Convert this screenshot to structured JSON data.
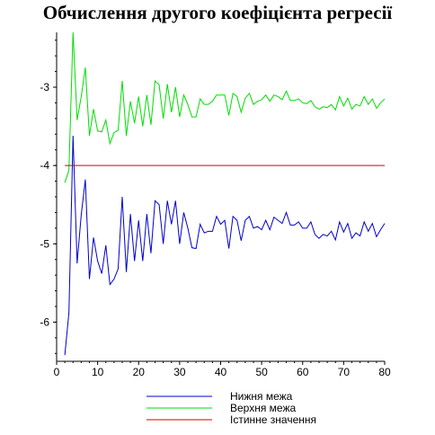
{
  "chart_data": {
    "type": "line",
    "title": "Обчислення другого коефіцієнта регресії",
    "xlabel": "",
    "ylabel": "",
    "xlim": [
      0,
      80
    ],
    "ylim": [
      -6.5,
      -2.3
    ],
    "x_ticks": [
      0,
      10,
      20,
      30,
      40,
      50,
      60,
      70,
      80
    ],
    "y_ticks": [
      -6,
      -5,
      -4,
      -3
    ],
    "grid": false,
    "legend_position": "bottom",
    "series": [
      {
        "name": "Нижня межа",
        "color": "#0000cc",
        "x": [
          2,
          3,
          4,
          5,
          6,
          7,
          8,
          9,
          10,
          11,
          12,
          13,
          14,
          15,
          16,
          17,
          18,
          19,
          20,
          21,
          22,
          23,
          24,
          25,
          26,
          27,
          28,
          29,
          30,
          31,
          32,
          33,
          34,
          35,
          36,
          37,
          38,
          39,
          40,
          41,
          42,
          43,
          44,
          45,
          46,
          47,
          48,
          49,
          50,
          51,
          52,
          53,
          54,
          55,
          56,
          57,
          58,
          59,
          60,
          61,
          62,
          63,
          64,
          65,
          66,
          67,
          68,
          69,
          70,
          71,
          72,
          73,
          74,
          75,
          76,
          77,
          78,
          79,
          80
        ],
        "y": [
          -6.42,
          -5.88,
          -3.62,
          -5.25,
          -4.63,
          -4.18,
          -5.45,
          -4.92,
          -5.22,
          -5.38,
          -5.02,
          -5.52,
          -5.45,
          -5.32,
          -4.4,
          -5.36,
          -4.62,
          -5.22,
          -4.7,
          -5.22,
          -4.62,
          -5.12,
          -4.45,
          -4.5,
          -5.0,
          -4.45,
          -4.75,
          -4.45,
          -5.0,
          -4.6,
          -4.8,
          -5.05,
          -5.06,
          -4.75,
          -4.86,
          -4.84,
          -4.84,
          -4.65,
          -4.75,
          -4.7,
          -5.06,
          -4.65,
          -4.7,
          -4.96,
          -4.7,
          -4.65,
          -4.8,
          -4.78,
          -4.82,
          -4.7,
          -4.82,
          -4.66,
          -4.7,
          -4.74,
          -4.6,
          -4.76,
          -4.76,
          -4.72,
          -4.8,
          -4.8,
          -4.72,
          -4.88,
          -4.93,
          -4.88,
          -4.9,
          -4.84,
          -4.95,
          -4.72,
          -4.85,
          -4.74,
          -4.93,
          -4.86,
          -4.9,
          -4.72,
          -4.84,
          -4.74,
          -4.91,
          -4.82,
          -4.74
        ]
      },
      {
        "name": "Верхня межа",
        "color": "#00dd00",
        "x": [
          2,
          3,
          4,
          5,
          6,
          7,
          8,
          9,
          10,
          11,
          12,
          13,
          14,
          15,
          16,
          17,
          18,
          19,
          20,
          21,
          22,
          23,
          24,
          25,
          26,
          27,
          28,
          29,
          30,
          31,
          32,
          33,
          34,
          35,
          36,
          37,
          38,
          39,
          40,
          41,
          42,
          43,
          44,
          45,
          46,
          47,
          48,
          49,
          50,
          51,
          52,
          53,
          54,
          55,
          56,
          57,
          58,
          59,
          60,
          61,
          62,
          63,
          64,
          65,
          66,
          67,
          68,
          69,
          70,
          71,
          72,
          73,
          74,
          75,
          76,
          77,
          78,
          79,
          80
        ],
        "y": [
          -4.22,
          -4.06,
          -2.3,
          -3.42,
          -3.12,
          -2.75,
          -3.62,
          -3.28,
          -3.56,
          -3.57,
          -3.42,
          -3.72,
          -3.58,
          -3.55,
          -2.92,
          -3.62,
          -3.18,
          -3.46,
          -3.12,
          -3.5,
          -3.1,
          -3.48,
          -2.92,
          -2.97,
          -3.4,
          -2.96,
          -3.32,
          -3.0,
          -3.38,
          -3.1,
          -3.22,
          -3.38,
          -3.38,
          -3.15,
          -3.22,
          -3.22,
          -3.18,
          -3.1,
          -3.1,
          -3.1,
          -3.36,
          -3.08,
          -3.12,
          -3.32,
          -3.14,
          -3.08,
          -3.22,
          -3.18,
          -3.16,
          -3.1,
          -3.18,
          -3.1,
          -3.12,
          -3.16,
          -3.05,
          -3.17,
          -3.17,
          -3.15,
          -3.2,
          -3.21,
          -3.17,
          -3.25,
          -3.28,
          -3.25,
          -3.26,
          -3.22,
          -3.29,
          -3.12,
          -3.24,
          -3.14,
          -3.28,
          -3.22,
          -3.24,
          -3.12,
          -3.22,
          -3.15,
          -3.27,
          -3.2,
          -3.15
        ]
      },
      {
        "name": "Істинне значення",
        "color": "#cc0000",
        "x": [
          2,
          80
        ],
        "y": [
          -4.0,
          -4.0
        ]
      }
    ]
  }
}
